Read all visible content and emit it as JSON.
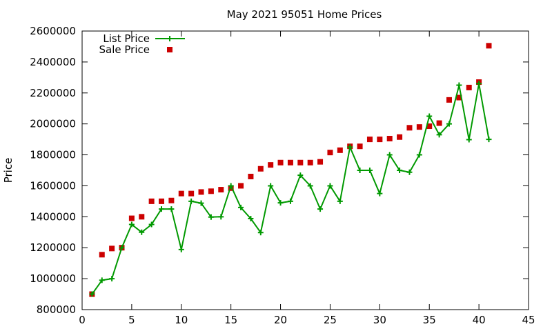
{
  "chart_data": {
    "type": "scatter",
    "title": "May 2021 95051 Home Prices",
    "xlabel": "",
    "ylabel": "Price",
    "xlim": [
      0,
      45
    ],
    "ylim": [
      800000,
      2600000
    ],
    "x_ticks": [
      0,
      5,
      10,
      15,
      20,
      25,
      30,
      35,
      40,
      45
    ],
    "y_ticks": [
      800000,
      1000000,
      1200000,
      1400000,
      1600000,
      1800000,
      2000000,
      2200000,
      2400000,
      2600000
    ],
    "grid": false,
    "legend_position": "top-left",
    "x": [
      1,
      2,
      3,
      4,
      5,
      6,
      7,
      8,
      9,
      10,
      11,
      12,
      13,
      14,
      15,
      16,
      17,
      18,
      19,
      20,
      21,
      22,
      23,
      24,
      25,
      26,
      27,
      28,
      29,
      30,
      31,
      32,
      33,
      34,
      35,
      36,
      37,
      38,
      39,
      40,
      41
    ],
    "series": [
      {
        "name": "List Price",
        "style": "linespoints",
        "color": "#009900",
        "marker": "plus",
        "values": [
          900000,
          990000,
          1000000,
          1200000,
          1350000,
          1300000,
          1350000,
          1450000,
          1450000,
          1188000,
          1500000,
          1488000,
          1398000,
          1400000,
          1600000,
          1460000,
          1388000,
          1298000,
          1600000,
          1490000,
          1500000,
          1668000,
          1600000,
          1450000,
          1600000,
          1500000,
          1850000,
          1700000,
          1700000,
          1550000,
          1800000,
          1700000,
          1688000,
          1800000,
          2050000,
          1930000,
          2000000,
          2250000,
          1898000,
          2260000,
          1900000
        ]
      },
      {
        "name": "Sale Price",
        "style": "points",
        "color": "#cc0000",
        "marker": "square",
        "values": [
          900000,
          1155000,
          1195000,
          1200000,
          1390000,
          1400000,
          1500000,
          1500000,
          1505000,
          1550000,
          1550000,
          1560000,
          1565000,
          1575000,
          1585000,
          1600000,
          1660000,
          1710000,
          1735000,
          1750000,
          1750000,
          1750000,
          1750000,
          1755000,
          1815000,
          1830000,
          1855000,
          1855000,
          1900000,
          1900000,
          1905000,
          1915000,
          1975000,
          1980000,
          1985000,
          2005000,
          2155000,
          2170000,
          2235000,
          2270000,
          2505000
        ]
      }
    ]
  }
}
